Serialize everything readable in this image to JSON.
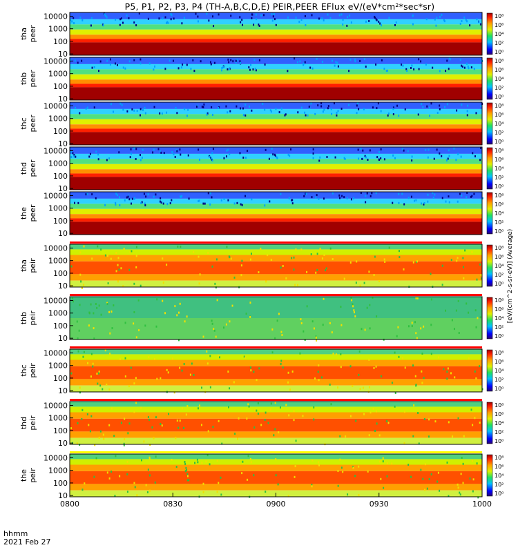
{
  "title": "P5, P1, P2, P3, P4 (TH-A,B,C,D,E) PEIR,PEER EFlux eV/(eV*cm²*sec*sr)",
  "footer": {
    "time_label": "hhmm",
    "date_label": "2021 Feb 27"
  },
  "colorbar_label": "[eV/(cm^2-s-sr-eV)] (Average)",
  "colorbar_ticks": [
    "10⁸",
    "10⁶",
    "10⁴",
    "10²",
    "10⁰"
  ],
  "colors": {
    "separator_red": "#ff0000",
    "separator_yellow": "#ffff00",
    "saturated": "#a00000"
  },
  "chart_data": {
    "type": "heatmap",
    "x_axis": {
      "ticks": [
        "0800",
        "0830",
        "0900",
        "0930",
        "1000"
      ],
      "range": [
        "0800",
        "1000"
      ]
    },
    "y_axis": {
      "scale": "log",
      "ticks": [
        "10",
        "100",
        "1000",
        "10000"
      ],
      "units": "eV"
    },
    "panels": [
      {
        "probe": "tha",
        "species": "peer",
        "label": [
          "tha",
          "peer"
        ]
      },
      {
        "probe": "thb",
        "species": "peer",
        "label": [
          "thb",
          "peer"
        ]
      },
      {
        "probe": "thc",
        "species": "peer",
        "label": [
          "thc",
          "peer"
        ]
      },
      {
        "probe": "thd",
        "species": "peer",
        "label": [
          "thd",
          "peer"
        ]
      },
      {
        "probe": "the",
        "species": "peer",
        "label": [
          "the",
          "peer"
        ]
      },
      {
        "probe": "tha",
        "species": "peir",
        "label": [
          "tha",
          "peir"
        ]
      },
      {
        "probe": "thb",
        "species": "peir",
        "label": [
          "thb",
          "peir"
        ]
      },
      {
        "probe": "thc",
        "species": "peir",
        "label": [
          "thc",
          "peir"
        ]
      },
      {
        "probe": "thd",
        "species": "peir",
        "label": [
          "thd",
          "peir"
        ]
      },
      {
        "probe": "the",
        "species": "peir",
        "label": [
          "the",
          "peir"
        ]
      }
    ]
  }
}
